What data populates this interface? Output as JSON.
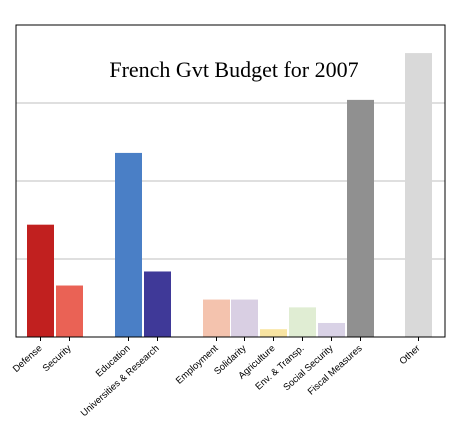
{
  "chart_data": {
    "type": "bar",
    "title": "French Gvt Budget for 2007",
    "xlabel": "",
    "ylabel": "",
    "ylim": [
      0,
      100
    ],
    "grid": true,
    "legend": "none",
    "categories": [
      "Defense",
      "Security",
      "Education",
      "Universities & Research",
      "Employment",
      "Solidarity",
      "Agriculture",
      "Env. & Transp.",
      "Social Security",
      "Fiscal Measures",
      "Other"
    ],
    "values": [
      36,
      16.5,
      59,
      21,
      12,
      12,
      2.5,
      9.5,
      4.5,
      76,
      91
    ],
    "colors": [
      "#c1201f",
      "#ea6255",
      "#4a7fc6",
      "#3f3998",
      "#f4c3ae",
      "#d9cfe3",
      "#f8e4a2",
      "#e0edd3",
      "#d9d2e6",
      "#909090",
      "#d9d9d9"
    ],
    "gridline_color": "#bfbfbf",
    "axis_color": "#000000"
  }
}
